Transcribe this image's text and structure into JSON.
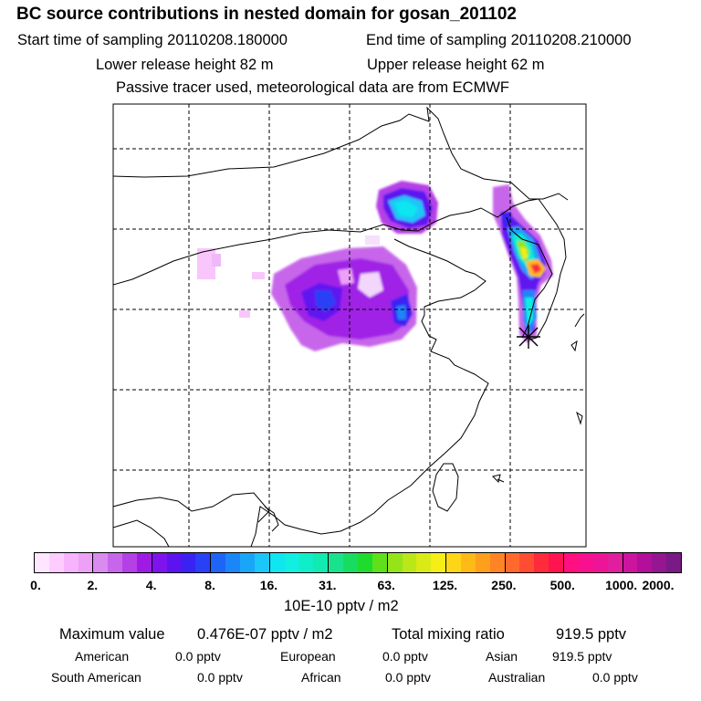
{
  "header": {
    "title": "BC  source contributions in nested domain for gosan_201102",
    "start_time": "Start time of sampling 20110208.180000",
    "end_time": "End time of sampling 20110208.210000",
    "lower_release": "Lower release height   82 m",
    "upper_release": "Upper release height   62 m",
    "tracer_note": "Passive tracer used, meteorological data are from ECMWF"
  },
  "colorbar": {
    "ticks": [
      "0.",
      "2.",
      "4.",
      "8.",
      "16.",
      "31.",
      "63.",
      "125.",
      "250.",
      "500.",
      "1000.",
      "2000."
    ],
    "unit": "10E-10 pptv / m2",
    "segments": [
      [
        "#ffe6ff",
        "#ffccff",
        "#f7b3fb",
        "#eca1f7"
      ],
      [
        "#d98bf0",
        "#c766ea",
        "#b440e6",
        "#9f1be4"
      ],
      [
        "#7f13ee",
        "#5b14f0",
        "#3a22f3",
        "#2a40f5"
      ],
      [
        "#1e64f6",
        "#1a86f8",
        "#1aa6f8",
        "#1bc6f8"
      ],
      [
        "#10e6ef",
        "#10efe0",
        "#10eec9",
        "#11eab0"
      ],
      [
        "#18e28c",
        "#18dc5f",
        "#1edc2e",
        "#5fe01b"
      ],
      [
        "#95e41a",
        "#b9e718",
        "#d9ea17",
        "#f5ee17"
      ],
      [
        "#ffd617",
        "#ffba18",
        "#ff9f1c",
        "#ff8424"
      ],
      [
        "#ff6a2c",
        "#ff4d33",
        "#ff2b3a",
        "#ff1450"
      ],
      [
        "#ff0f80",
        "#f8118e",
        "#ee1497",
        "#e01e9e"
      ],
      [
        "#cc149e",
        "#b30f9a",
        "#961591",
        "#7a1a84"
      ]
    ]
  },
  "summary": {
    "max_label": "Maximum value",
    "max_value": "0.476E-07 pptv / m2",
    "total_label": "Total mixing ratio",
    "total_value": "919.5 pptv"
  },
  "contributions": [
    {
      "region": "American",
      "value": "0.0 pptv"
    },
    {
      "region": "European",
      "value": "0.0 pptv"
    },
    {
      "region": "Asian",
      "value": "919.5 pptv"
    },
    {
      "region": "South American",
      "value": "0.0 pptv"
    },
    {
      "region": "African",
      "value": "0.0 pptv"
    },
    {
      "region": "Australian",
      "value": "0.0 pptv"
    }
  ],
  "colors": {
    "marker": "#2aa02a",
    "grid": "#000000"
  }
}
